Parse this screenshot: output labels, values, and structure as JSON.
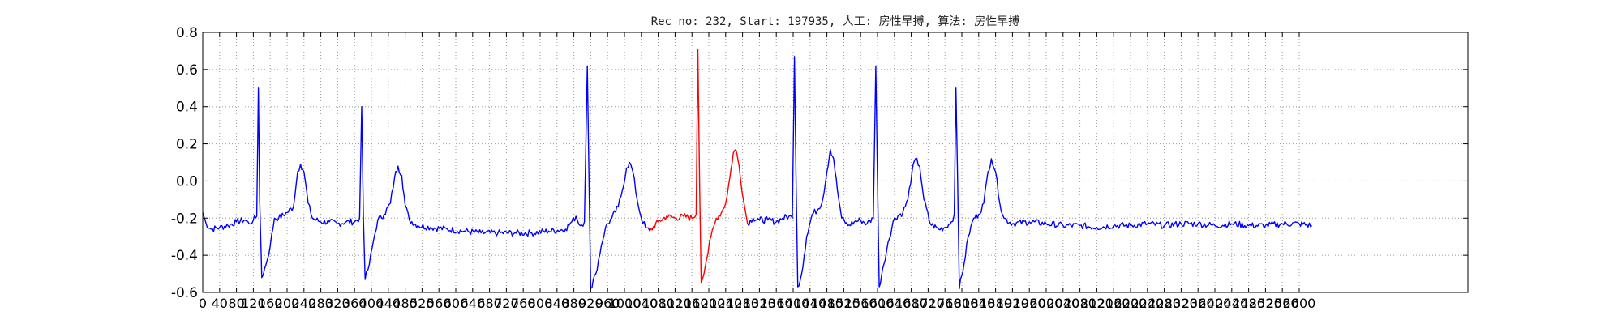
{
  "chart_data": {
    "type": "line",
    "title": "Rec_no: 232, Start: 197935, 人工: 房性早搏, 算法: 房性早搏",
    "xlabel": "",
    "ylabel": "",
    "xlim": [
      0,
      3000
    ],
    "ylim": [
      -0.6,
      0.8
    ],
    "grid": true,
    "y_ticks": [
      "-0.6",
      "-0.4",
      "-0.2",
      "0.0",
      "0.2",
      "0.4",
      "0.6",
      "0.8"
    ],
    "x_ticks": [
      0,
      40,
      80,
      120,
      160,
      200,
      240,
      280,
      320,
      360,
      400,
      440,
      480,
      520,
      560,
      600,
      640,
      680,
      720,
      760,
      800,
      840,
      880,
      920,
      960,
      1000,
      1040,
      1080,
      1120,
      1160,
      1200,
      1240,
      1280,
      1320,
      1360,
      1400,
      1440,
      1480,
      1520,
      1560,
      1600,
      1640,
      1680,
      1720,
      1760,
      1800,
      1840,
      1880,
      1920,
      1960,
      2000,
      2040,
      2080,
      2120,
      2160,
      2200,
      2240,
      2280,
      2320,
      2360,
      2400,
      2440,
      2480,
      2520,
      2560,
      2600
    ],
    "series": [
      {
        "color": "#0000ff",
        "points": [
          [
            0,
            -0.17
          ],
          [
            8,
            -0.23
          ],
          [
            20,
            -0.26
          ],
          [
            40,
            -0.25
          ],
          [
            60,
            -0.24
          ],
          [
            80,
            -0.22
          ],
          [
            100,
            -0.21
          ],
          [
            110,
            -0.23
          ],
          [
            120,
            -0.21
          ],
          [
            128,
            -0.19
          ],
          [
            132,
            0.5
          ],
          [
            135,
            -0.1
          ],
          [
            140,
            -0.52
          ],
          [
            150,
            -0.45
          ],
          [
            160,
            -0.35
          ],
          [
            170,
            -0.2
          ],
          [
            180,
            -0.2
          ],
          [
            200,
            -0.17
          ],
          [
            215,
            -0.14
          ],
          [
            225,
            0.05
          ],
          [
            232,
            0.09
          ],
          [
            240,
            0.05
          ],
          [
            250,
            -0.12
          ],
          [
            260,
            -0.2
          ],
          [
            280,
            -0.22
          ],
          [
            300,
            -0.22
          ],
          [
            320,
            -0.23
          ],
          [
            340,
            -0.22
          ],
          [
            360,
            -0.22
          ],
          [
            372,
            -0.2
          ],
          [
            377,
            0.4
          ],
          [
            381,
            -0.2
          ],
          [
            385,
            -0.53
          ],
          [
            395,
            -0.45
          ],
          [
            405,
            -0.32
          ],
          [
            415,
            -0.21
          ],
          [
            430,
            -0.18
          ],
          [
            445,
            -0.12
          ],
          [
            455,
            0.02
          ],
          [
            463,
            0.08
          ],
          [
            472,
            0.03
          ],
          [
            480,
            -0.13
          ],
          [
            490,
            -0.21
          ],
          [
            510,
            -0.24
          ],
          [
            540,
            -0.25
          ],
          [
            580,
            -0.26
          ],
          [
            620,
            -0.27
          ],
          [
            660,
            -0.28
          ],
          [
            700,
            -0.28
          ],
          [
            740,
            -0.28
          ],
          [
            780,
            -0.28
          ],
          [
            820,
            -0.27
          ],
          [
            860,
            -0.26
          ],
          [
            875,
            -0.22
          ],
          [
            885,
            -0.19
          ],
          [
            895,
            -0.24
          ],
          [
            905,
            -0.22
          ],
          [
            912,
            0.62
          ],
          [
            916,
            0.0
          ],
          [
            920,
            -0.58
          ],
          [
            932,
            -0.5
          ],
          [
            945,
            -0.35
          ],
          [
            955,
            -0.25
          ],
          [
            970,
            -0.2
          ],
          [
            985,
            -0.14
          ],
          [
            995,
            -0.05
          ],
          [
            1005,
            0.07
          ],
          [
            1012,
            0.1
          ],
          [
            1020,
            0.05
          ],
          [
            1030,
            -0.1
          ],
          [
            1040,
            -0.2
          ],
          [
            1050,
            -0.25
          ],
          [
            1060,
            -0.27
          ]
        ]
      },
      {
        "color": "#ff0000",
        "points": [
          [
            1060,
            -0.27
          ],
          [
            1080,
            -0.22
          ],
          [
            1100,
            -0.19
          ],
          [
            1120,
            -0.2
          ],
          [
            1140,
            -0.19
          ],
          [
            1160,
            -0.2
          ],
          [
            1170,
            -0.18
          ],
          [
            1174,
            0.71
          ],
          [
            1178,
            0.0
          ],
          [
            1182,
            -0.55
          ],
          [
            1195,
            -0.42
          ],
          [
            1205,
            -0.3
          ],
          [
            1218,
            -0.2
          ],
          [
            1230,
            -0.17
          ],
          [
            1240,
            -0.12
          ],
          [
            1250,
            0.02
          ],
          [
            1258,
            0.15
          ],
          [
            1264,
            0.17
          ],
          [
            1272,
            0.08
          ],
          [
            1282,
            -0.1
          ],
          [
            1292,
            -0.23
          ]
        ]
      },
      {
        "color": "#0000ff",
        "points": [
          [
            1292,
            -0.23
          ],
          [
            1305,
            -0.2
          ],
          [
            1320,
            -0.21
          ],
          [
            1340,
            -0.21
          ],
          [
            1360,
            -0.22
          ],
          [
            1375,
            -0.2
          ],
          [
            1390,
            -0.19
          ],
          [
            1398,
            -0.2
          ],
          [
            1403,
            0.67
          ],
          [
            1407,
            0.0
          ],
          [
            1411,
            -0.57
          ],
          [
            1420,
            -0.5
          ],
          [
            1432,
            -0.3
          ],
          [
            1445,
            -0.18
          ],
          [
            1460,
            -0.15
          ],
          [
            1470,
            -0.1
          ],
          [
            1480,
            0.05
          ],
          [
            1488,
            0.17
          ],
          [
            1496,
            0.12
          ],
          [
            1505,
            -0.05
          ],
          [
            1515,
            -0.2
          ],
          [
            1530,
            -0.24
          ],
          [
            1545,
            -0.22
          ],
          [
            1560,
            -0.21
          ],
          [
            1575,
            -0.23
          ],
          [
            1590,
            -0.2
          ],
          [
            1596,
            0.62
          ],
          [
            1600,
            0.0
          ],
          [
            1604,
            -0.57
          ],
          [
            1615,
            -0.45
          ],
          [
            1625,
            -0.33
          ],
          [
            1640,
            -0.2
          ],
          [
            1660,
            -0.17
          ],
          [
            1672,
            -0.1
          ],
          [
            1682,
            0.05
          ],
          [
            1690,
            0.12
          ],
          [
            1700,
            0.08
          ],
          [
            1710,
            -0.1
          ],
          [
            1725,
            -0.23
          ],
          [
            1745,
            -0.26
          ],
          [
            1760,
            -0.25
          ],
          [
            1775,
            -0.22
          ],
          [
            1782,
            -0.18
          ],
          [
            1786,
            0.5
          ],
          [
            1790,
            0.0
          ],
          [
            1794,
            -0.58
          ],
          [
            1805,
            -0.45
          ],
          [
            1815,
            -0.3
          ],
          [
            1828,
            -0.2
          ],
          [
            1840,
            -0.18
          ],
          [
            1852,
            -0.12
          ],
          [
            1862,
            0.05
          ],
          [
            1870,
            0.12
          ],
          [
            1880,
            0.05
          ],
          [
            1890,
            -0.12
          ],
          [
            1900,
            -0.2
          ],
          [
            1920,
            -0.23
          ],
          [
            1960,
            -0.22
          ],
          [
            2000,
            -0.23
          ],
          [
            2040,
            -0.24
          ],
          [
            2080,
            -0.24
          ],
          [
            2120,
            -0.25
          ],
          [
            2160,
            -0.24
          ],
          [
            2200,
            -0.24
          ],
          [
            2240,
            -0.23
          ],
          [
            2280,
            -0.24
          ],
          [
            2320,
            -0.23
          ],
          [
            2360,
            -0.23
          ],
          [
            2400,
            -0.24
          ],
          [
            2440,
            -0.23
          ],
          [
            2480,
            -0.24
          ],
          [
            2520,
            -0.24
          ],
          [
            2560,
            -0.23
          ],
          [
            2600,
            -0.23
          ],
          [
            2630,
            -0.24
          ]
        ]
      }
    ]
  }
}
